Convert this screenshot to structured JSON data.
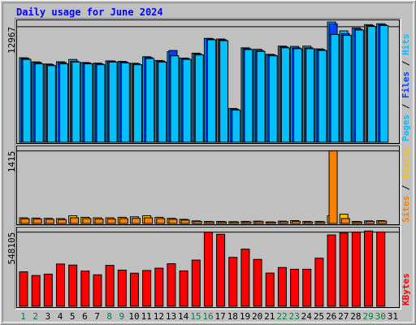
{
  "colors": {
    "background": "#c0c0c0",
    "title": "#0000ff",
    "hits": "#00c0ff",
    "files": "#0040ff",
    "pages": "#00c0ff",
    "visits": "#ffc000",
    "sites": "#ff8000",
    "kbytes": "#ff0000",
    "weekend_day": "#008040",
    "weekday": "#000000"
  },
  "chart_data": {
    "type": "bar",
    "title": "Daily usage for June 2024",
    "categories": [
      "1",
      "2",
      "3",
      "4",
      "5",
      "6",
      "7",
      "8",
      "9",
      "10",
      "11",
      "12",
      "13",
      "14",
      "15",
      "16",
      "17",
      "18",
      "19",
      "20",
      "21",
      "22",
      "23",
      "24",
      "25",
      "26",
      "27",
      "28",
      "29",
      "30",
      "31"
    ],
    "weekend_days": [
      1,
      2,
      8,
      9,
      15,
      16,
      22,
      23,
      29,
      30
    ],
    "panels": [
      {
        "id": "hits",
        "max_label": "12967",
        "ylim": [
          0,
          12967
        ],
        "legend": [
          "Pages",
          "Files",
          "Hits"
        ],
        "series": [
          {
            "name": "Hits",
            "values": [
              9480,
              9020,
              8780,
              9030,
              9290,
              8950,
              8880,
              9130,
              9080,
              8860,
              9600,
              9180,
              10170,
              9450,
              10000,
              11660,
              11590,
              3790,
              10600,
              10440,
              9870,
              10790,
              10760,
              10790,
              10480,
              13500,
              12500,
              12830,
              13200,
              13300,
              0
            ]
          },
          {
            "name": "Files",
            "values": [
              9400,
              8950,
              8700,
              8950,
              9100,
              8900,
              8800,
              9100,
              9000,
              8800,
              9500,
              9100,
              10300,
              9400,
              9900,
              11600,
              11500,
              3700,
              10500,
              10300,
              9800,
              10700,
              10600,
              10600,
              10400,
              13300,
              12200,
              12700,
              13100,
              13200,
              0
            ]
          },
          {
            "name": "Pages",
            "values": [
              9300,
              8800,
              8600,
              8800,
              9000,
              8800,
              8700,
              9000,
              8900,
              8700,
              9400,
              9000,
              9700,
              9300,
              9800,
              11500,
              11400,
              3600,
              10400,
              10200,
              9700,
              10600,
              10500,
              10500,
              10300,
              12100,
              12000,
              12600,
              13000,
              13100,
              0
            ]
          }
        ]
      },
      {
        "id": "visits",
        "max_label": "1415",
        "ylim": [
          0,
          1415
        ],
        "legend": [
          "Sites",
          "Visits"
        ],
        "series": [
          {
            "name": "Visits",
            "values": [
              110,
              105,
              100,
              95,
              150,
              120,
              110,
              110,
              120,
              130,
              150,
              120,
              100,
              80,
              50,
              40,
              40,
              35,
              40,
              45,
              30,
              45,
              55,
              40,
              40,
              150,
              180,
              40,
              50,
              55,
              0
            ]
          },
          {
            "name": "Sites",
            "values": [
              90,
              85,
              80,
              75,
              110,
              95,
              85,
              85,
              95,
              100,
              110,
              95,
              80,
              65,
              40,
              32,
              30,
              28,
              30,
              35,
              25,
              35,
              42,
              30,
              30,
              1415,
              95,
              30,
              40,
              45,
              0
            ]
          }
        ]
      },
      {
        "id": "kbytes",
        "max_label": "548105",
        "ylim": [
          0,
          548105
        ],
        "legend": [
          "KBytes"
        ],
        "series": [
          {
            "name": "KBytes",
            "values": [
              255000,
              228000,
              238000,
              313000,
              305000,
              261000,
              233000,
              303000,
              268000,
              245000,
              265000,
              282000,
              315000,
              262000,
              342000,
              548000,
              533000,
              362000,
              423000,
              347000,
              246000,
              287000,
              274000,
              274000,
              356000,
              528000,
              542000,
              548000,
              557000,
              550000,
              0
            ]
          }
        ]
      }
    ]
  }
}
